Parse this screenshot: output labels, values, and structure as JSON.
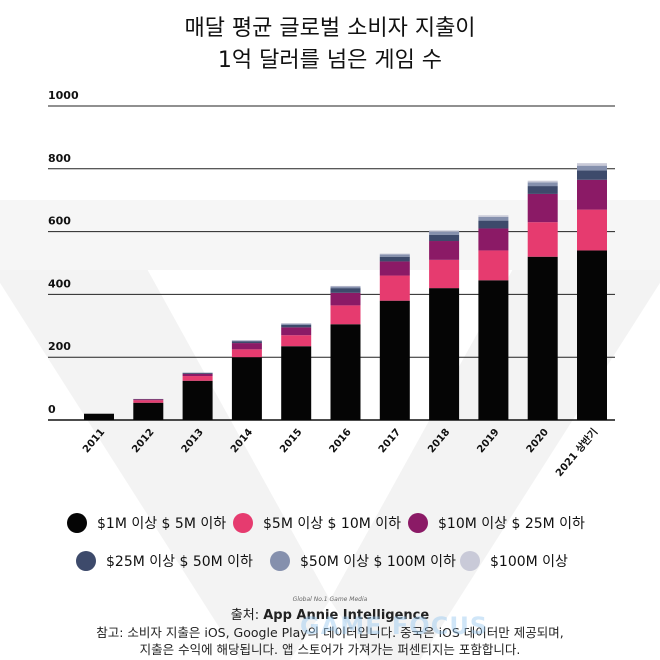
{
  "title_line1": "매달 평균 글로벌 소비자 지출이",
  "title_line2": "1억 달러를 넘은 게임 수",
  "chart_data": {
    "type": "bar",
    "stacked": true,
    "categories": [
      "2011",
      "2012",
      "2013",
      "2014",
      "2015",
      "2016",
      "2017",
      "2018",
      "2019",
      "2020",
      "2021 상반기"
    ],
    "ylim": [
      0,
      1000
    ],
    "yticks": [
      0,
      200,
      400,
      600,
      800,
      1000
    ],
    "grid": true,
    "legend_position": "bottom",
    "series": [
      {
        "name": "$1M 이상 $ 5M 이하",
        "color": "#050505",
        "values": [
          20,
          55,
          125,
          200,
          235,
          305,
          380,
          420,
          445,
          520,
          540
        ]
      },
      {
        "name": "$5M 이상 $ 10M 이하",
        "color": "#e63b6f",
        "values": [
          0,
          8,
          15,
          25,
          35,
          60,
          80,
          90,
          95,
          110,
          130
        ]
      },
      {
        "name": "$10M 이상 $ 25M 이하",
        "color": "#8b1a66",
        "values": [
          0,
          3,
          7,
          20,
          25,
          40,
          45,
          60,
          70,
          90,
          95
        ]
      },
      {
        "name": "$25M 이상 $ 50M 이하",
        "color": "#3d4a6b",
        "values": [
          0,
          1,
          3,
          5,
          8,
          15,
          15,
          20,
          25,
          25,
          30
        ]
      },
      {
        "name": "$50M 이상 $ 100M 이하",
        "color": "#8590ad",
        "values": [
          0,
          0,
          1,
          3,
          4,
          5,
          7,
          10,
          12,
          12,
          15
        ]
      },
      {
        "name": "$100M 이상",
        "color": "#c9cad8",
        "values": [
          0,
          0,
          0,
          1,
          1,
          2,
          3,
          4,
          5,
          5,
          8
        ]
      }
    ]
  },
  "footer": {
    "media_tag": "Global No.1 Game Media",
    "source_prefix": "출처: ",
    "source_name": "App Annie Intelligence",
    "note_line1": "참고: 소비자 지출은 iOS, Google Play의 데이터입니다. 중국은 iOS 데이터만 제공되며,",
    "note_line2": "지출은 수익에 해당됩니다. 앱 스토어가 가져가는 퍼센티지는 포함합니다."
  },
  "watermark": "GAME FOCUS"
}
